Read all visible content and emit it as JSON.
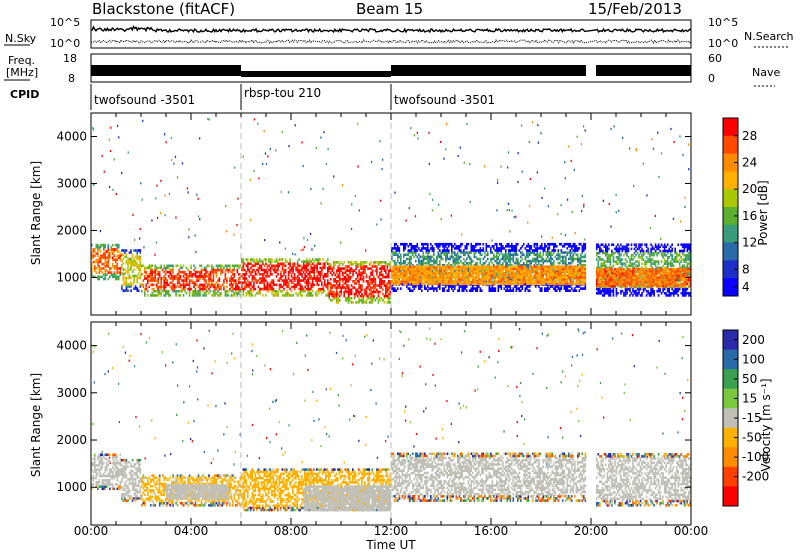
{
  "header": {
    "station": "Blackstone (fitACF)",
    "beam": "Beam 15",
    "date": "15/Feb/2013"
  },
  "noise_panel": {
    "left_label": "N.Sky",
    "left_ticks": [
      "10^5",
      "10^0"
    ],
    "right_ticks": [
      "10^5",
      "10^0"
    ],
    "right_label": "N.Search",
    "right_label_style": "dotted"
  },
  "freq_panel": {
    "left_label_line1": "Freq.",
    "left_label_line2": "[MHz]",
    "left_ticks": [
      "18",
      "8"
    ],
    "right_ticks": [
      "60",
      "0"
    ],
    "right_label": "Nave",
    "right_label_style": "dotted"
  },
  "cpid": {
    "label": "CPID",
    "segments": [
      {
        "name": "twofsound -3501",
        "start_hour": 0,
        "end_hour": 6
      },
      {
        "name": "rbsp-tou 210",
        "start_hour": 6,
        "end_hour": 12
      },
      {
        "name": "twofsound -3501",
        "start_hour": 12,
        "end_hour": 24
      }
    ]
  },
  "chart_data": [
    {
      "type": "heatmap",
      "name": "power",
      "ylabel": "Slant Range [km]",
      "yticks": [
        1000,
        2000,
        3000,
        4000
      ],
      "ylim": [
        200,
        4500
      ],
      "xlim": [
        0,
        24
      ],
      "colorbar": {
        "label": "Power [dB]",
        "tick_labels": [
          "28",
          "24",
          "20",
          "16",
          "12",
          "8",
          "4"
        ],
        "colors": [
          "#ff0000",
          "#ff4a00",
          "#ff8c00",
          "#ffb000",
          "#aac800",
          "#5cb030",
          "#3a9c7a",
          "#2a6aa8",
          "#1c30c8",
          "#0a00ff"
        ]
      },
      "bands": [
        {
          "start_hour": 0.0,
          "end_hour": 1.2,
          "low_km": 950,
          "high_km": 1700,
          "value_db": 24
        },
        {
          "start_hour": 1.2,
          "end_hour": 2.0,
          "low_km": 700,
          "high_km": 1600,
          "value_db": 18
        },
        {
          "start_hour": 2.0,
          "end_hour": 6.0,
          "low_km": 600,
          "high_km": 1250,
          "value_db": 26
        },
        {
          "start_hour": 6.0,
          "end_hour": 9.5,
          "low_km": 600,
          "high_km": 1400,
          "value_db": 28
        },
        {
          "start_hour": 9.5,
          "end_hour": 12.0,
          "low_km": 450,
          "high_km": 1350,
          "value_db": 28
        },
        {
          "start_hour": 12.0,
          "end_hour": 19.8,
          "low_km": 700,
          "high_km": 1700,
          "value_db": 12
        },
        {
          "start_hour": 20.2,
          "end_hour": 24.0,
          "low_km": 600,
          "high_km": 1700,
          "value_db": 14
        }
      ],
      "cores": [
        {
          "start_hour": 12.0,
          "end_hour": 19.8,
          "low_km": 850,
          "high_km": 1250,
          "value_db": 22
        },
        {
          "start_hour": 20.2,
          "end_hour": 24.0,
          "low_km": 800,
          "high_km": 1200,
          "value_db": 24
        }
      ]
    },
    {
      "type": "heatmap",
      "name": "velocity",
      "ylabel": "Slant Range [km]",
      "yticks": [
        1000,
        2000,
        3000,
        4000
      ],
      "ylim": [
        200,
        4500
      ],
      "xlim": [
        0,
        24
      ],
      "colorbar": {
        "label": "Velocity [m s⁻¹]",
        "tick_labels": [
          "200",
          "100",
          "50",
          "15",
          "-15",
          "-50",
          "-100",
          "-200"
        ],
        "colors": [
          "#2a2aa8",
          "#2a6aa8",
          "#3aa050",
          "#7ac840",
          "#c0c0b8",
          "#ffb000",
          "#ff8c00",
          "#ff4000",
          "#ff0000"
        ]
      },
      "bands": [
        {
          "start_hour": 0.0,
          "end_hour": 1.2,
          "low_km": 950,
          "high_km": 1700,
          "value_ms": 0
        },
        {
          "start_hour": 1.2,
          "end_hour": 2.0,
          "low_km": 700,
          "high_km": 1600,
          "value_ms": -10
        },
        {
          "start_hour": 2.0,
          "end_hour": 6.0,
          "low_km": 600,
          "high_km": 1250,
          "value_ms": -40
        },
        {
          "start_hour": 6.0,
          "end_hour": 12.0,
          "low_km": 500,
          "high_km": 1400,
          "value_ms": -45
        },
        {
          "start_hour": 12.0,
          "end_hour": 19.8,
          "low_km": 700,
          "high_km": 1700,
          "value_ms": 0
        },
        {
          "start_hour": 20.2,
          "end_hour": 24.0,
          "low_km": 600,
          "high_km": 1700,
          "value_ms": 0
        }
      ],
      "cores": [
        {
          "start_hour": 3.0,
          "end_hour": 5.5,
          "low_km": 750,
          "high_km": 1050,
          "value_ms": 0
        },
        {
          "start_hour": 8.5,
          "end_hour": 12.0,
          "low_km": 500,
          "high_km": 1000,
          "value_ms": 0
        }
      ]
    }
  ],
  "x_axis": {
    "title": "Time UT",
    "ticks": [
      "00:00",
      "04:00",
      "08:00",
      "12:00",
      "16:00",
      "20:00",
      "00:00"
    ],
    "tick_hours": [
      0,
      4,
      8,
      12,
      16,
      20,
      24
    ]
  },
  "colors": {
    "axis": "#000000",
    "dashed_marker": "#bbbbbb"
  }
}
